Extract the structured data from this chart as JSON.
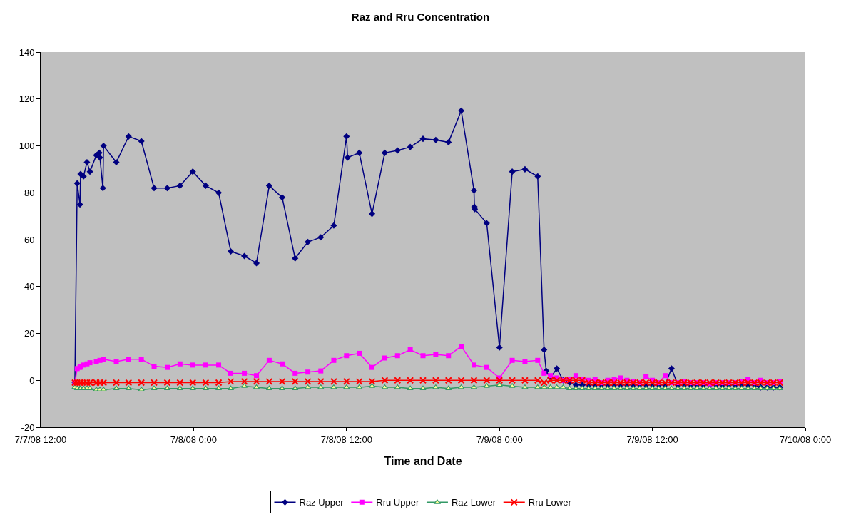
{
  "chart_data": {
    "type": "line",
    "title": "Raz and Rru Concentration",
    "xlabel": "Time and Date",
    "x": [
      "--07-07T14:41",
      "--07-07T14:52",
      "--07-07T15:05",
      "--07-07T15:08",
      "--07-07T15:22",
      "--07-07T15:38",
      "--07-07T15:52",
      "--07-07T16:22",
      "--07-07T16:39",
      "--07-07T16:56",
      "--07-07T17:56",
      "--07-07T18:54",
      "--07-07T19:54",
      "--07-07T20:54",
      "--07-07T21:56",
      "--07-07T22:56",
      "--07-07T23:56",
      "--07-08T00:57",
      "--07-08T01:58",
      "--07-08T02:55",
      "--07-08T03:59",
      "--07-08T04:56",
      "--07-08T05:56",
      "--07-08T06:57",
      "--07-08T07:58",
      "--07-08T08:58",
      "--07-08T09:59",
      "--07-08T11:00",
      "--07-08T12:00",
      "--07-08T13:00",
      "--07-08T14:00",
      "--07-08T15:00",
      "--07-08T16:00",
      "--07-08T17:00",
      "--07-08T18:00",
      "--07-08T19:00",
      "--07-08T20:00",
      "--07-08T21:00",
      "--07-08T22:00",
      "--07-08T23:00",
      "--07-09T00:00",
      "--07-09T01:00",
      "--07-09T02:00",
      "--07-09T03:00",
      "--07-09T03:30",
      "--07-09T04:00",
      "--07-09T04:30",
      "--07-09T05:00",
      "--07-09T05:30",
      "--07-09T06:00",
      "--07-09T06:30",
      "--07-09T07:00",
      "--07-09T07:30",
      "--07-09T08:00",
      "--07-09T08:30",
      "--07-09T09:00",
      "--07-09T09:30",
      "--07-09T10:00",
      "--07-09T10:30",
      "--07-09T11:00",
      "--07-09T11:30",
      "--07-09T12:00",
      "--07-09T12:30",
      "--07-09T13:00",
      "--07-09T13:30",
      "--07-09T14:00",
      "--07-09T14:30",
      "--07-09T15:00",
      "--07-09T15:30",
      "--07-09T16:00",
      "--07-09T16:30",
      "--07-09T17:00",
      "--07-09T17:30",
      "--07-09T18:00",
      "--07-09T18:30",
      "--07-09T19:00",
      "--07-09T19:30",
      "--07-09T20:00",
      "--07-09T20:30",
      "--07-09T21:00",
      "--07-09T21:30",
      "--07-09T22:00"
    ],
    "series": [
      {
        "name": "Raz Upper",
        "color": "#000080",
        "marker": "diamond",
        "x": [
          "--07-07T14:41",
          "--07-07T14:52",
          "--07-07T15:05",
          "--07-07T15:08",
          "--07-07T15:22",
          "--07-07T15:38",
          "--07-07T15:52",
          "--07-07T16:22",
          "--07-07T16:36",
          "--07-07T16:39",
          "--07-07T16:53",
          "--07-07T16:56",
          "--07-07T17:56",
          "--07-07T18:54",
          "--07-07T19:54",
          "--07-07T20:54",
          "--07-07T21:56",
          "--07-07T22:56",
          "--07-07T23:56",
          "--07-08T00:57",
          "--07-08T01:58",
          "--07-08T02:55",
          "--07-08T03:59",
          "--07-08T04:56",
          "--07-08T05:56",
          "--07-08T06:57",
          "--07-08T07:58",
          "--07-08T08:58",
          "--07-08T09:59",
          "--07-08T11:00",
          "--07-08T12:00",
          "--07-08T12:05",
          "--07-08T13:00",
          "--07-08T14:00",
          "--07-08T15:00",
          "--07-08T16:00",
          "--07-08T17:00",
          "--07-08T18:00",
          "--07-08T19:00",
          "--07-08T20:00",
          "--07-08T21:00",
          "--07-08T22:00",
          "--07-08T22:02",
          "--07-08T22:04",
          "--07-08T23:00",
          "--07-09T00:00",
          "--07-09T01:00",
          "--07-09T02:00",
          "--07-09T03:00",
          "--07-09T03:30",
          "--07-09T03:40",
          "--07-09T04:00",
          "--07-09T04:30",
          "--07-09T05:00",
          "--07-09T05:30",
          "--07-09T06:00",
          "--07-09T06:30",
          "--07-09T07:00",
          "--07-09T07:30",
          "--07-09T08:00",
          "--07-09T08:30",
          "--07-09T09:00",
          "--07-09T09:30",
          "--07-09T10:00",
          "--07-09T10:30",
          "--07-09T11:00",
          "--07-09T11:30",
          "--07-09T12:00",
          "--07-09T12:30",
          "--07-09T13:00",
          "--07-09T13:30",
          "--07-09T14:00",
          "--07-09T14:30",
          "--07-09T15:00",
          "--07-09T15:30",
          "--07-09T16:00",
          "--07-09T16:30",
          "--07-09T17:00",
          "--07-09T17:30",
          "--07-09T18:00",
          "--07-09T18:30",
          "--07-09T19:00",
          "--07-09T19:30",
          "--07-09T20:00",
          "--07-09T20:30",
          "--07-09T21:00",
          "--07-09T21:30",
          "--07-09T22:00"
        ],
        "values": [
          -1,
          84,
          75,
          88,
          87,
          93,
          89,
          96,
          97,
          95,
          82,
          100,
          93,
          104,
          102,
          82,
          82,
          83,
          89,
          83,
          80,
          55,
          53,
          50,
          83,
          78,
          52,
          59,
          61,
          66,
          104,
          95,
          97,
          71,
          97,
          98,
          99.5,
          103,
          102.5,
          101.5,
          115,
          81,
          74,
          73,
          67,
          14,
          89,
          90,
          87,
          13,
          4,
          1,
          5,
          0,
          -1,
          -2,
          -2,
          -2,
          -2,
          -2,
          -2,
          -2,
          -2,
          -2,
          -2,
          -2,
          -2,
          -2,
          -2,
          -2,
          5,
          -2,
          -2,
          -2,
          -2,
          -2,
          -2,
          -2,
          -2,
          -2,
          -2,
          -2,
          -2,
          -2,
          -3,
          -3,
          -3,
          -3
        ]
      },
      {
        "name": "Rru Upper",
        "color": "#ff00ff",
        "marker": "square",
        "values": [
          -1,
          5,
          5.5,
          6,
          6.5,
          7,
          7.5,
          8,
          8.5,
          9,
          8,
          9,
          9,
          6,
          5.5,
          7,
          6.5,
          6.5,
          6.5,
          3,
          3,
          2,
          8.5,
          7,
          3,
          3.5,
          4,
          8.5,
          10.5,
          11.5,
          5.5,
          9.5,
          10.5,
          13,
          10.5,
          11,
          10.5,
          14.5,
          6.5,
          5.5,
          1,
          8.5,
          8,
          8.5,
          3,
          2,
          1,
          0,
          0.5,
          2,
          0.5,
          0,
          0.5,
          -1,
          0,
          0.5,
          1,
          0,
          -0.5,
          -1,
          1.5,
          0,
          -1,
          2,
          -1,
          -1,
          -0.5,
          -1,
          -1,
          -1,
          -1.5,
          -1,
          -1,
          -1,
          -1,
          -0.5,
          0.5,
          -1,
          0,
          -1,
          -1,
          -0.5
        ]
      },
      {
        "name": "Raz Lower",
        "color": "#339966",
        "marker": "triangle",
        "values": [
          -3,
          -3.5,
          -3.5,
          -3.5,
          -3.5,
          -3.5,
          -3.5,
          -4,
          -4,
          -4,
          -3.5,
          -3.5,
          -4,
          -3.5,
          -3.5,
          -3.5,
          -3.5,
          -3.5,
          -3.5,
          -3.5,
          -2.5,
          -3,
          -3.5,
          -3.5,
          -3.5,
          -3,
          -3,
          -3,
          -3,
          -3,
          -2.5,
          -3,
          -3,
          -3.5,
          -3.5,
          -3,
          -3.5,
          -3,
          -3,
          -2.5,
          -2,
          -2.5,
          -3,
          -3,
          -3,
          -3,
          -3,
          -3,
          -3.5,
          -3.5,
          -3.5,
          -3.5,
          -3.5,
          -3.5,
          -3.5,
          -3.5,
          -3.5,
          -3.5,
          -3.5,
          -3.5,
          -3.5,
          -3.5,
          -3.5,
          -3.5,
          -3.5,
          -3.5,
          -3.5,
          -3.5,
          -3.5,
          -3.5,
          -3.5,
          -3.5,
          -3.5,
          -3.5,
          -3.5,
          -3.5,
          -3.5,
          -3.5,
          -3.5,
          -3.5,
          -3.5,
          -3.5
        ]
      },
      {
        "name": "Rru Lower",
        "color": "#ff0000",
        "marker": "cross",
        "values": [
          -1,
          -1,
          -1,
          -1,
          -1,
          -1,
          -1,
          -1,
          -1,
          -1,
          -1,
          -1,
          -1,
          -1,
          -1,
          -1,
          -1,
          -1,
          -1,
          -0.5,
          -0.5,
          -0.5,
          -0.5,
          -0.5,
          -0.5,
          -0.5,
          -0.5,
          -0.5,
          -0.5,
          -0.5,
          -0.5,
          0,
          0,
          0,
          0,
          0,
          0,
          0,
          0,
          0,
          0,
          0,
          0,
          0,
          -1,
          0,
          0,
          0,
          0,
          0,
          0,
          -1,
          -1,
          -1,
          -1,
          -1,
          -1,
          -1,
          -1,
          -1,
          -1,
          -1,
          -1,
          -1,
          -1,
          -1,
          -1,
          -1,
          -1,
          -1,
          -1,
          -1,
          -1,
          -1,
          -1,
          -1,
          -1,
          -1,
          -1,
          -1,
          -1,
          -1
        ]
      }
    ],
    "xlim": [
      "--07-07T12:00",
      "--07-10T00:00"
    ],
    "xticks": [
      {
        "value": "--07-07T12:00",
        "label": "7/7/08 12:00"
      },
      {
        "value": "--07-08T00:00",
        "label": "7/8/08 0:00"
      },
      {
        "value": "--07-08T12:00",
        "label": "7/8/08 12:00"
      },
      {
        "value": "--07-09T00:00",
        "label": "7/9/08 0:00"
      },
      {
        "value": "--07-09T12:00",
        "label": "7/9/08 12:00"
      },
      {
        "value": "--07-10T00:00",
        "label": "7/10/08 0:00"
      }
    ],
    "ylim": [
      -20,
      140
    ],
    "yticks": [
      -20,
      0,
      20,
      40,
      60,
      80,
      100,
      120,
      140
    ],
    "grid": false,
    "legend": "bottom",
    "line_style": "solid"
  }
}
